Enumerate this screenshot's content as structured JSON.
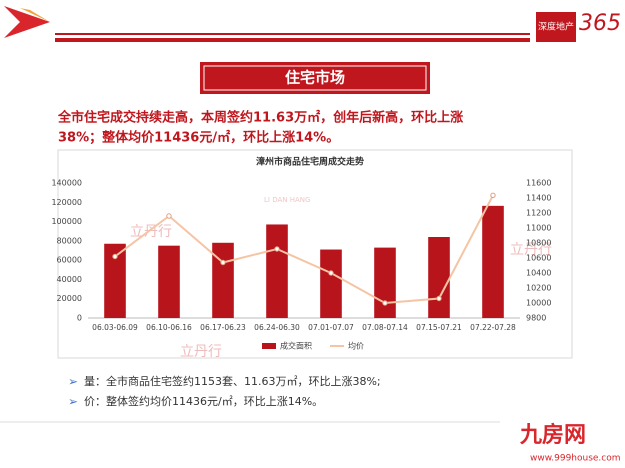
{
  "logo": {
    "top": "深度地产",
    "number": "365"
  },
  "section_title": "住宅市场",
  "headline": [
    "全市住宅成交持续走高，本周签约11.63万㎡，创年后新高，环比上涨",
    "38%；整体均价11436元/㎡，环比上涨14%。"
  ],
  "watermark": {
    "name": "立丹行",
    "pinyin": "LI DAN HANG"
  },
  "bullets": [
    "量：全市商品住宅签约1153套、11.63万㎡，环比上涨38%;",
    "价：整体签约均价11436元/㎡，环比上涨14%。"
  ],
  "footer": {
    "brand": "九房网",
    "url": "www.999house.com"
  },
  "chart_data": {
    "type": "bar-line",
    "title": "漳州市商品住宅周成交走势",
    "categories": [
      "06.03-06.09",
      "06.10-06.16",
      "06.17-06.23",
      "06.24-06.30",
      "07.01-07.07",
      "07.08-07.14",
      "07.15-07.21",
      "07.22-07.28"
    ],
    "series": [
      {
        "name": "成交面积",
        "type": "bar",
        "color": "#b8141b",
        "values": [
          77000,
          75000,
          78000,
          97000,
          71000,
          73000,
          84000,
          116300
        ]
      },
      {
        "name": "均价",
        "type": "line",
        "color": "#f5c4a4",
        "axis": "y2",
        "values": [
          10620,
          11160,
          10540,
          10720,
          10400,
          10000,
          10060,
          11436
        ]
      }
    ],
    "ylim": [
      0,
      140000
    ],
    "yticks": [
      0,
      20000,
      40000,
      60000,
      80000,
      100000,
      120000,
      140000
    ],
    "y2lim": [
      9800,
      11600
    ],
    "y2ticks": [
      9800,
      10000,
      10200,
      10400,
      10600,
      10800,
      11000,
      11200,
      11400,
      11600
    ],
    "legend": "bottom",
    "grid": false
  }
}
